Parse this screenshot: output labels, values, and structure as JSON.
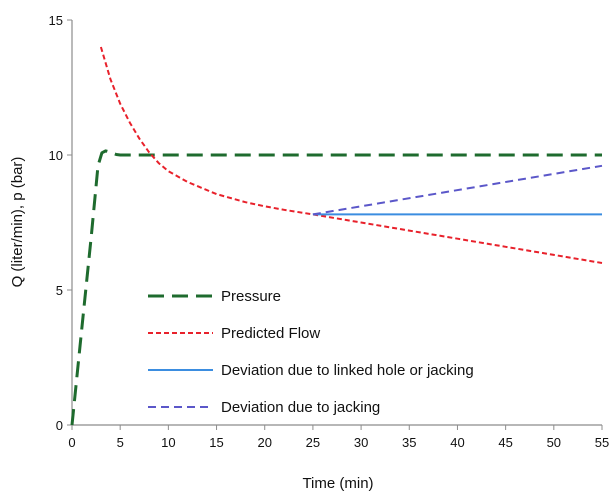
{
  "chart_data": {
    "type": "line",
    "title": "",
    "xlabel": "Time (min)",
    "ylabel": "Q (liter/min),  p (bar)",
    "xlim": [
      0,
      55
    ],
    "ylim": [
      0,
      15
    ],
    "xticks": [
      "0",
      "5",
      "10",
      "15",
      "20",
      "25",
      "30",
      "35",
      "40",
      "45",
      "50",
      "55"
    ],
    "yticks": [
      "0",
      "5",
      "10",
      "15"
    ],
    "grid": false,
    "legend_position": "lower-center",
    "series": [
      {
        "name": "Pressure",
        "color": "#1e6b2e",
        "style": "long-dash",
        "x": [
          0,
          1,
          2,
          2.7,
          3.1,
          3.5,
          4,
          4.6,
          5,
          10,
          20,
          30,
          40,
          50,
          55
        ],
        "y": [
          0,
          3.5,
          7,
          9.6,
          10.08,
          10.15,
          10.1,
          10.02,
          10,
          10,
          10,
          10,
          10,
          10,
          10
        ]
      },
      {
        "name": "Predicted Flow",
        "color": "#e8212b",
        "style": "short-dash",
        "x": [
          3,
          4,
          5,
          6,
          7,
          8,
          9,
          10,
          12,
          15,
          18,
          20,
          22,
          25,
          30,
          35,
          40,
          45,
          50,
          55
        ],
        "y": [
          14,
          12.8,
          11.9,
          11.2,
          10.6,
          10.1,
          9.7,
          9.4,
          9.0,
          8.55,
          8.25,
          8.1,
          7.97,
          7.8,
          7.5,
          7.2,
          6.9,
          6.6,
          6.3,
          6.0
        ]
      },
      {
        "name": "Deviation due to linked hole or jacking",
        "color": "#3b8de0",
        "style": "solid",
        "x": [
          25,
          55
        ],
        "y": [
          7.8,
          7.8
        ]
      },
      {
        "name": "Deviation due to jacking",
        "color": "#5b57c9",
        "style": "medium-dash",
        "x": [
          25,
          55
        ],
        "y": [
          7.8,
          9.6
        ]
      }
    ]
  }
}
